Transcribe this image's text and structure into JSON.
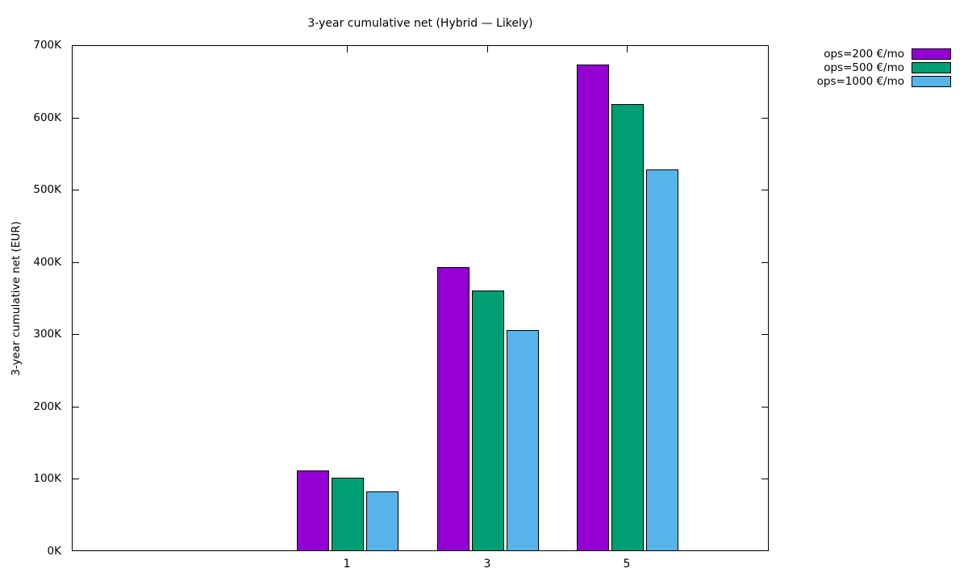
{
  "page": {
    "background": "#ffffff",
    "text_color": "#000000"
  },
  "chart_data": {
    "type": "bar",
    "title": "3-year cumulative net (Hybrid — Likely)",
    "ylabel": "3-year cumulative net (EUR)",
    "xlabel": "",
    "categories": [
      "1",
      "3",
      "5"
    ],
    "series": [
      {
        "name": "ops=200 €/mo",
        "color": "#9400d3",
        "values": [
          110,
          392,
          672
        ]
      },
      {
        "name": "ops=500 €/mo",
        "color": "#009e73",
        "values": [
          100,
          360,
          617
        ]
      },
      {
        "name": "ops=1000 €/mo",
        "color": "#56b4e9",
        "values": [
          82,
          305,
          527
        ]
      }
    ],
    "values_unit": "K (thousand EUR)",
    "ylim": [
      0,
      700
    ],
    "ytick_step": 100,
    "ytick_labels": [
      "0K",
      "100K",
      "200K",
      "300K",
      "400K",
      "500K",
      "600K",
      "700K"
    ],
    "grid": false,
    "legend_position": "outside-top-right",
    "bar_border_color": "#000000"
  }
}
